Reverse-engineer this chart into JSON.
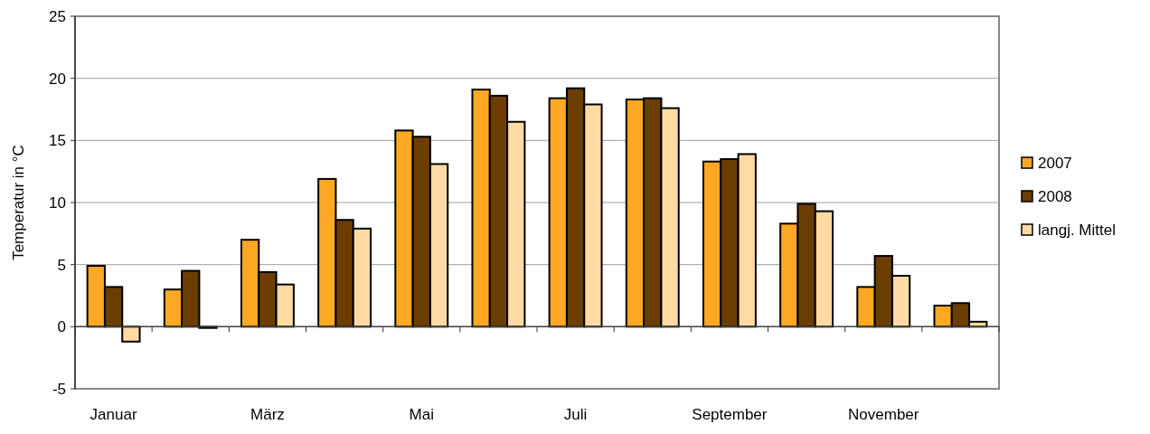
{
  "chart_data": {
    "type": "bar",
    "ylabel": "Temperatur in °C",
    "categories": [
      "Januar",
      null,
      "März",
      null,
      "Mai",
      null,
      "Juli",
      null,
      "September",
      null,
      "November",
      null
    ],
    "series": [
      {
        "name": "2007",
        "color": "#ffa824",
        "values": [
          4.9,
          3.0,
          7.0,
          11.9,
          15.8,
          19.1,
          18.4,
          18.3,
          13.3,
          8.3,
          3.2,
          1.7
        ]
      },
      {
        "name": "2008",
        "color": "#6b3e00",
        "values": [
          3.2,
          4.5,
          4.4,
          8.6,
          15.3,
          18.6,
          19.2,
          18.4,
          13.5,
          9.9,
          5.7,
          1.9
        ]
      },
      {
        "name": "langj. Mittel",
        "color": "#ffdba3",
        "values": [
          -1.2,
          -0.1,
          3.4,
          7.9,
          13.1,
          16.5,
          17.9,
          17.6,
          13.9,
          9.3,
          4.1,
          0.4
        ]
      }
    ],
    "ylim": [
      -5,
      25
    ],
    "yticks": [
      -5,
      0,
      5,
      10,
      15,
      20,
      25
    ],
    "grid": "y",
    "legend": "right"
  }
}
